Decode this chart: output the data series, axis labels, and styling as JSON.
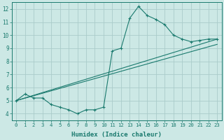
{
  "xlabel": "Humidex (Indice chaleur)",
  "bg_color": "#cce8e5",
  "grid_color": "#aaccca",
  "line_color": "#1a7a6e",
  "xlim": [
    -0.5,
    23.5
  ],
  "ylim": [
    3.5,
    12.5
  ],
  "xticks": [
    0,
    1,
    2,
    3,
    4,
    5,
    6,
    7,
    8,
    9,
    10,
    11,
    12,
    13,
    14,
    15,
    16,
    17,
    18,
    19,
    20,
    21,
    22,
    23
  ],
  "yticks": [
    4,
    5,
    6,
    7,
    8,
    9,
    10,
    11,
    12
  ],
  "line1_x": [
    0,
    1,
    2,
    3,
    4,
    5,
    6,
    7,
    8,
    9,
    10,
    11,
    12,
    13,
    14,
    15,
    16,
    17,
    18,
    19,
    20,
    21,
    22,
    23
  ],
  "line1_y": [
    5.0,
    5.5,
    5.2,
    5.2,
    4.7,
    4.5,
    4.3,
    4.0,
    4.3,
    4.3,
    4.5,
    8.8,
    9.0,
    11.3,
    12.2,
    11.5,
    11.2,
    10.8,
    10.0,
    9.7,
    9.5,
    9.6,
    9.7,
    9.7
  ],
  "line2_x": [
    0,
    23
  ],
  "line2_y": [
    5.0,
    9.7
  ],
  "line3_x": [
    0,
    23
  ],
  "line3_y": [
    5.0,
    9.3
  ]
}
